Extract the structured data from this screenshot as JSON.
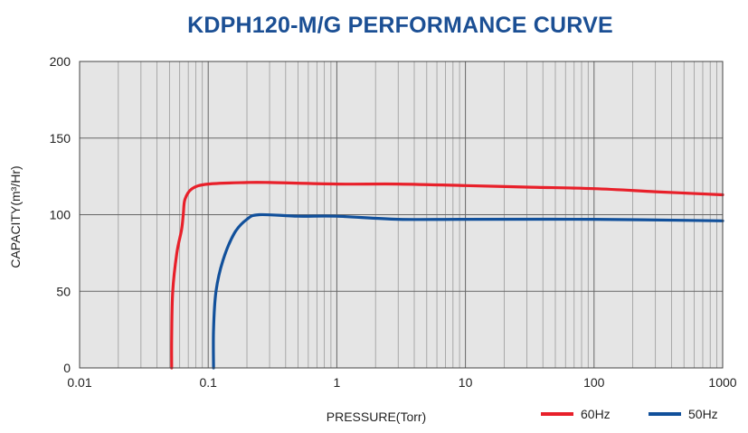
{
  "chart_data": {
    "type": "line",
    "title": "KDPH120-M/G  PERFORMANCE CURVE",
    "xlabel": "PRESSURE(Torr)",
    "ylabel": "CAPACITY(m³/Hr)",
    "xscale": "log",
    "xlim": [
      0.01,
      1000
    ],
    "ylim": [
      0,
      200
    ],
    "xticks": [
      0.01,
      0.1,
      1,
      10,
      100,
      1000
    ],
    "xtick_labels": [
      "0.01",
      "0.1",
      "1",
      "10",
      "100",
      "1000"
    ],
    "yticks": [
      0,
      50,
      100,
      150,
      200
    ],
    "ytick_labels": [
      "0",
      "50",
      "100",
      "150",
      "200"
    ],
    "grid": true,
    "background": "#e5e5e5",
    "legend_position": "bottom-right",
    "series": [
      {
        "name": "60Hz",
        "color": "#e8202a",
        "x": [
          0.052,
          0.052,
          0.053,
          0.057,
          0.062,
          0.064,
          0.066,
          0.075,
          0.1,
          0.2,
          0.3,
          1,
          3,
          10,
          30,
          100,
          300,
          1000
        ],
        "y": [
          0,
          20,
          50,
          75,
          90,
          100,
          110,
          117,
          120,
          121,
          121,
          120,
          120,
          119,
          118,
          117,
          115,
          113
        ]
      },
      {
        "name": "50Hz",
        "color": "#11509b",
        "x": [
          0.11,
          0.11,
          0.115,
          0.13,
          0.16,
          0.2,
          0.25,
          0.5,
          1,
          3,
          10,
          100,
          1000
        ],
        "y": [
          0,
          25,
          50,
          70,
          88,
          97,
          100,
          99,
          99,
          97,
          97,
          97,
          96
        ]
      }
    ]
  }
}
